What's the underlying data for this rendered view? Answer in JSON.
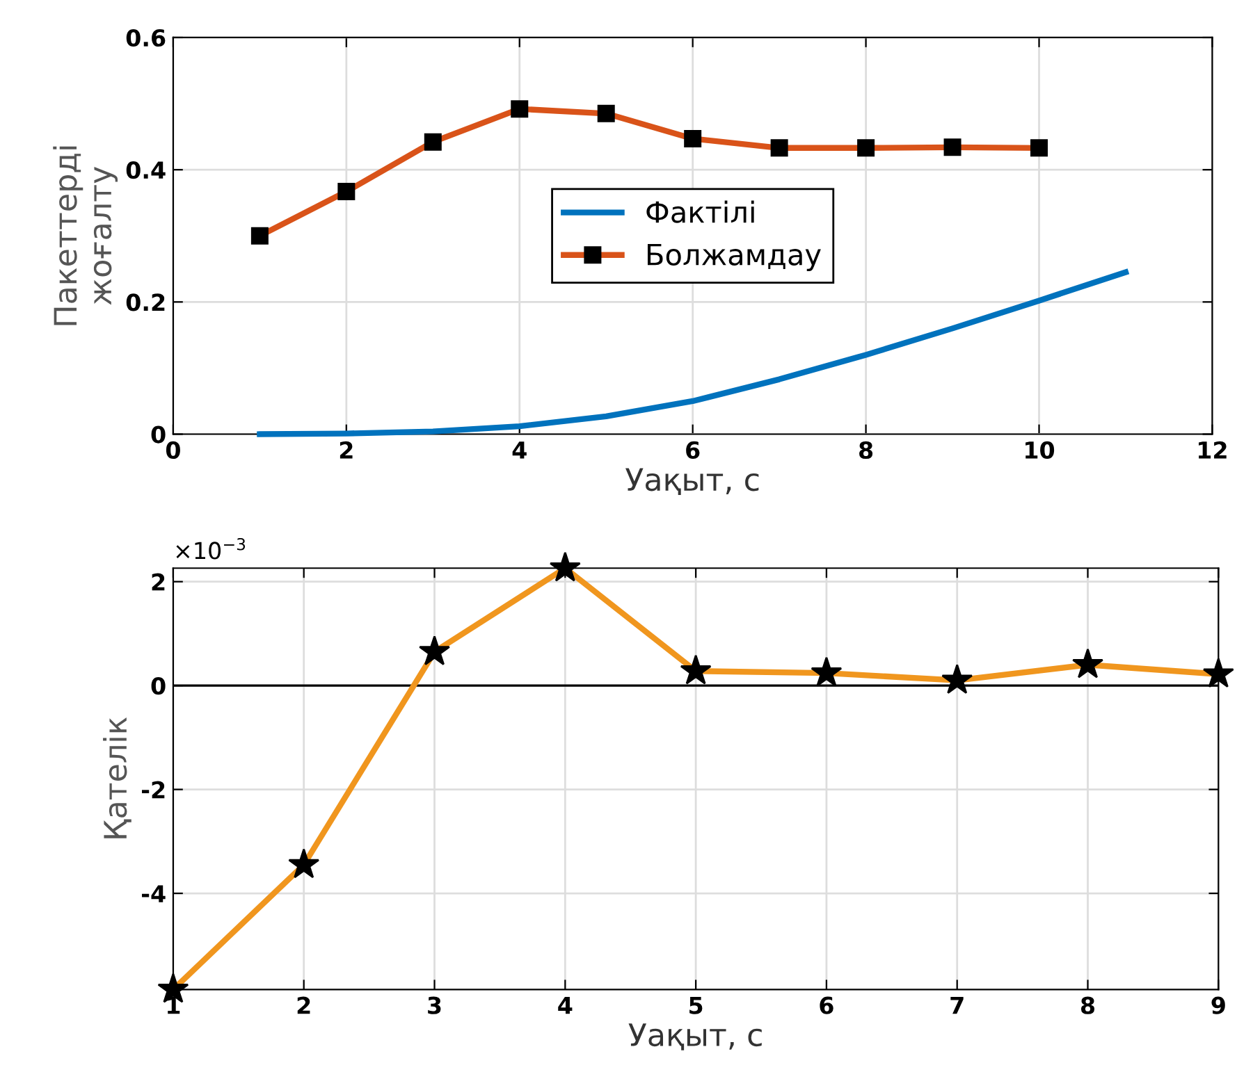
{
  "chart_data": [
    {
      "type": "line",
      "xlabel": "Уақыт, с",
      "ylabel": "Пакеттерді\nжоғалту",
      "xlim": [
        0,
        12
      ],
      "ylim": [
        0,
        0.6
      ],
      "xticks": [
        0,
        2,
        4,
        6,
        8,
        10,
        12
      ],
      "yticks": [
        0,
        0.2,
        0.4,
        0.6
      ],
      "grid": true,
      "legend": "center",
      "series": [
        {
          "name": "Фактілі",
          "color": "#0072bd",
          "marker": "none",
          "x": [
            1,
            2,
            3,
            4,
            5,
            6,
            7,
            8,
            9,
            10,
            11
          ],
          "values": [
            0,
            0.001,
            0.004,
            0.012,
            0.027,
            0.05,
            0.083,
            0.12,
            0.16,
            0.202,
            0.245
          ]
        },
        {
          "name": "Болжамдау",
          "color": "#d95319",
          "marker": "square",
          "x": [
            1,
            2,
            3,
            4,
            5,
            6,
            7,
            8,
            9,
            10
          ],
          "values": [
            0.3,
            0.367,
            0.442,
            0.492,
            0.485,
            0.447,
            0.433,
            0.433,
            0.434,
            0.433
          ]
        }
      ]
    },
    {
      "type": "line",
      "xlabel": "Уақыт, с",
      "ylabel": "Қателік",
      "xlim": [
        1,
        9
      ],
      "ylim": [
        -5.85,
        2.26
      ],
      "xticks": [
        1,
        2,
        3,
        4,
        5,
        6,
        7,
        8,
        9
      ],
      "yticks": [
        {
          "value": -4,
          "label": "-4"
        },
        {
          "value": -2,
          "label": "-2"
        },
        0,
        2
      ],
      "grid": true,
      "marker": "star",
      "annotations": [
        "×10$^{−3}$"
      ],
      "ref_lines": [
        {
          "axis": "y",
          "value": 0,
          "color": "#000000"
        }
      ],
      "series": [
        {
          "color": "#f0961e",
          "x": [
            1,
            2,
            3,
            4,
            5,
            6,
            7,
            8,
            9
          ],
          "values": [
            -5.85,
            -3.45,
            0.65,
            2.26,
            0.28,
            0.24,
            0.1,
            0.4,
            0.22
          ]
        }
      ]
    }
  ]
}
